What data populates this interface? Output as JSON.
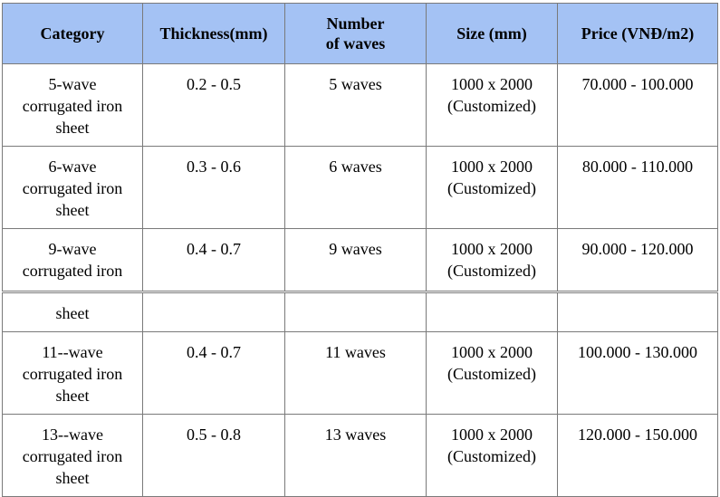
{
  "table": {
    "headers": [
      "Category",
      "Thickness(mm)",
      "Number of waves",
      "Size (mm)",
      "Price (VNĐ/m2)"
    ],
    "rows": [
      {
        "category": "5-wave corrugated iron sheet",
        "thickness": "0.2 - 0.5",
        "waves": "5 waves",
        "size": "1000 x 2000 (Customized)",
        "price": "70.000 - 100.000"
      },
      {
        "category": "6-wave corrugated iron sheet",
        "thickness": "0.3 - 0.6",
        "waves": "6 waves",
        "size": "1000 x 2000 (Customized)",
        "price": "80.000 - 110.000"
      },
      {
        "category": "9-wave corrugated iron",
        "thickness": "0.4 - 0.7",
        "waves": "9 waves",
        "size": "1000 x 2000 (Customized)",
        "price": "90.000 - 120.000"
      },
      {
        "category": "sheet",
        "thickness": "",
        "waves": "",
        "size": "",
        "price": ""
      },
      {
        "category": "11--wave corrugated iron sheet",
        "thickness": "0.4 - 0.7",
        "waves": "11 waves",
        "size": "1000 x 2000 (Customized)",
        "price": "100.000 - 130.000"
      },
      {
        "category": "13--wave corrugated iron sheet",
        "thickness": "0.5 - 0.8",
        "waves": "13 waves",
        "size": "1000 x 2000 (Customized)",
        "price": "120.000 - 150.000"
      }
    ]
  }
}
